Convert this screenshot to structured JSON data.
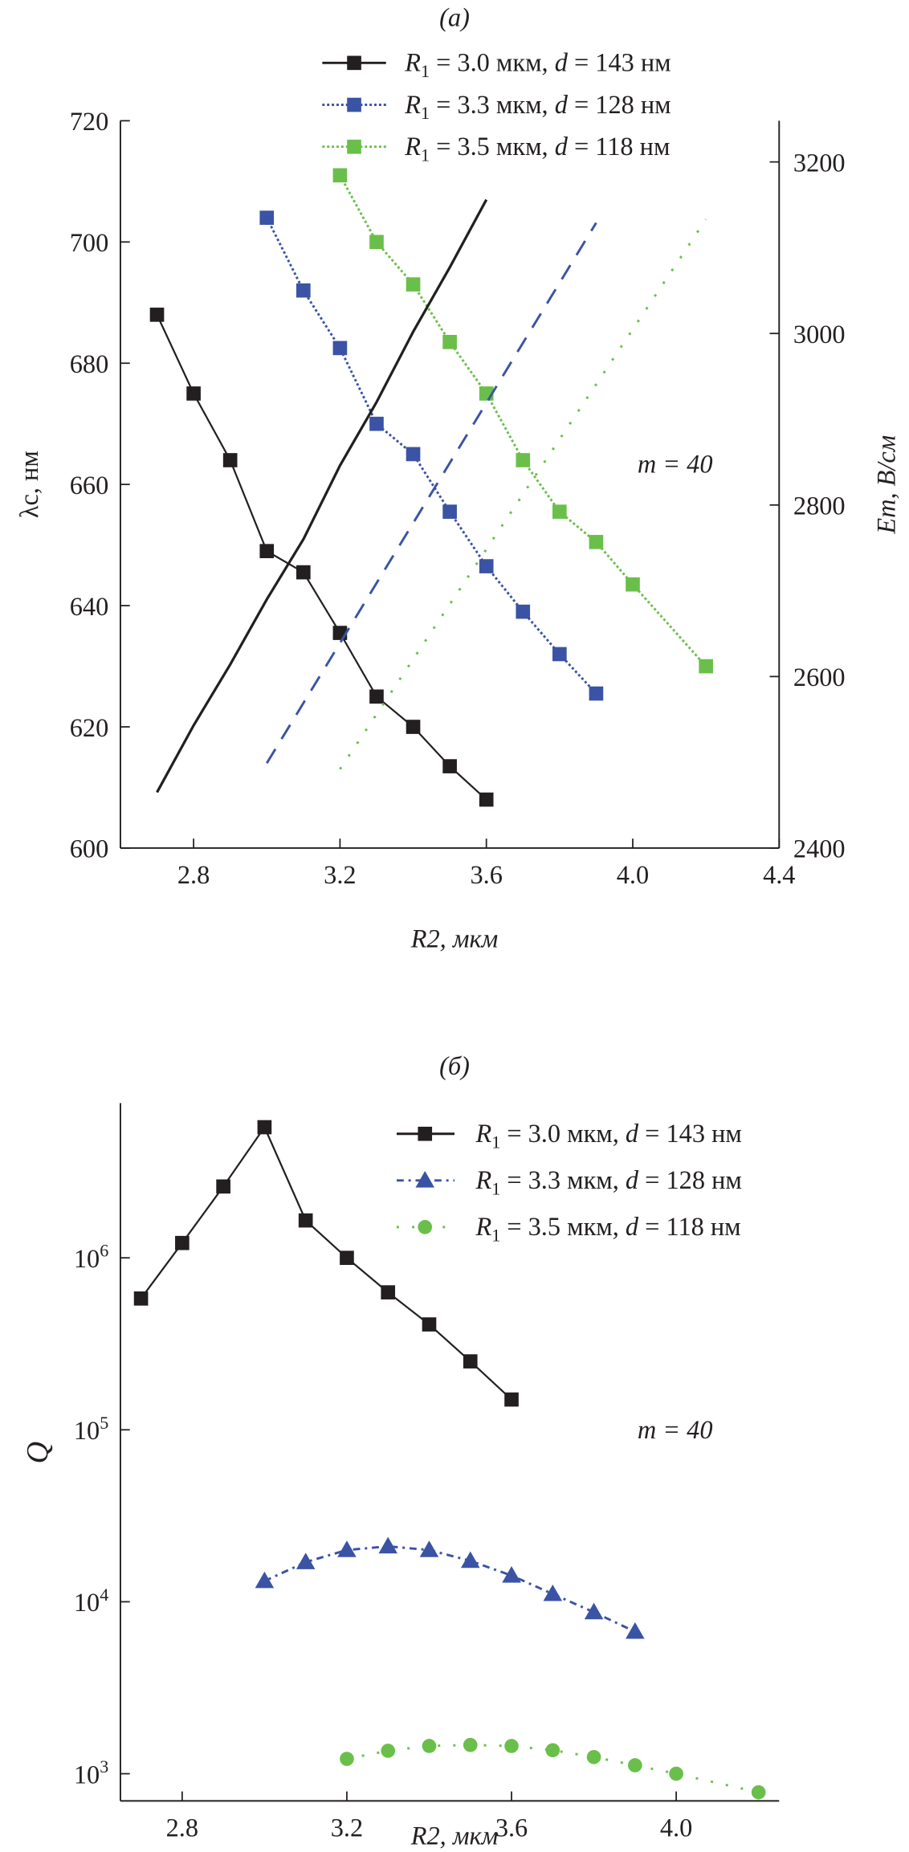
{
  "chart_data": [
    {
      "type": "line",
      "panel_label": "(a)",
      "annotation": "m = 40",
      "xlabel": "R2, мкм",
      "ylabel": "λc, нм",
      "y2label": "Em, В/см",
      "xlim": [
        2.6,
        4.4
      ],
      "ylim": [
        600,
        720
      ],
      "y2lim": [
        2400,
        3248
      ],
      "xticks": [
        "2.8",
        "3.2",
        "3.6",
        "4.0",
        "4.4"
      ],
      "yticks": [
        "600",
        "620",
        "640",
        "660",
        "680",
        "700",
        "720"
      ],
      "y2ticks": [
        "2400",
        "2600",
        "2800",
        "3000",
        "3200"
      ],
      "legend_position": "top-right",
      "colors": {
        "black": "#231f20",
        "blue": "#3a53a4",
        "green": "#6abf4b"
      },
      "series": [
        {
          "name": "R1 = 3.0 мкм, d = 143 нм",
          "axis": "left",
          "marker": "square",
          "color": "#231f20",
          "dash": "solid",
          "x": [
            2.7,
            2.8,
            2.9,
            3.0,
            3.1,
            3.2,
            3.3,
            3.4,
            3.5,
            3.6
          ],
          "y": [
            688,
            675,
            664,
            649,
            645.5,
            635.5,
            625,
            620,
            613.5,
            608
          ]
        },
        {
          "name": "R1 = 3.3 мкм, d = 128 нм",
          "axis": "left",
          "marker": "square",
          "color": "#3a53a4",
          "dash": "dotted",
          "x": [
            3.0,
            3.1,
            3.2,
            3.3,
            3.4,
            3.5,
            3.6,
            3.7,
            3.8,
            3.9
          ],
          "y": [
            704,
            692,
            682.5,
            670,
            665,
            655.5,
            646.5,
            639,
            632,
            625.5
          ]
        },
        {
          "name": "R1 = 3.5 мкм, d = 118 нм",
          "axis": "left",
          "marker": "square",
          "color": "#6abf4b",
          "dash": "dotted",
          "x": [
            3.2,
            3.3,
            3.4,
            3.5,
            3.6,
            3.7,
            3.8,
            3.9,
            4.0,
            4.2
          ],
          "y": [
            711,
            700,
            693,
            683.5,
            675,
            664,
            655.5,
            650.5,
            643.5,
            630
          ]
        },
        {
          "name": "Em, R1 = 3.0 мкм",
          "axis": "right",
          "marker": "none",
          "color": "#231f20",
          "dash": "solid",
          "x": [
            2.7,
            2.8,
            2.9,
            3.0,
            3.1,
            3.2,
            3.3,
            3.4,
            3.5,
            3.6
          ],
          "y": [
            2465,
            2543,
            2614,
            2690,
            2760,
            2846,
            2920,
            3002,
            3077,
            3156
          ]
        },
        {
          "name": "Em, R1 = 3.3 мкм",
          "axis": "right",
          "marker": "none",
          "color": "#3a53a4",
          "dash": "dashed",
          "x": [
            3.0,
            3.9
          ],
          "y": [
            2499,
            3129
          ]
        },
        {
          "name": "Em, R1 = 3.5 мкм",
          "axis": "right",
          "marker": "none",
          "color": "#6abf4b",
          "dash": "sparse-dotted",
          "x": [
            3.2,
            4.2
          ],
          "y": [
            2492,
            3133
          ]
        }
      ]
    },
    {
      "type": "line",
      "panel_label": "(б)",
      "annotation": "m = 40",
      "xlabel": "R2, мкм",
      "ylabel": "Q",
      "yscale": "log",
      "xlim": [
        2.65,
        4.25
      ],
      "ylim": [
        695,
        7940000
      ],
      "xticks": [
        "2.8",
        "3.2",
        "3.6",
        "4.0"
      ],
      "yticks": [
        {
          "base": "10",
          "exp": "3",
          "value": 1000
        },
        {
          "base": "10",
          "exp": "4",
          "value": 10000
        },
        {
          "base": "10",
          "exp": "5",
          "value": 100000
        },
        {
          "base": "10",
          "exp": "6",
          "value": 1000000
        }
      ],
      "legend_position": "top-right",
      "series": [
        {
          "name": "R1 = 3.0 мкм, d = 143 нм",
          "marker": "square",
          "color": "#231f20",
          "dash": "solid",
          "x": [
            2.7,
            2.8,
            2.9,
            3.0,
            3.1,
            3.2,
            3.3,
            3.4,
            3.5,
            3.6
          ],
          "y": [
            580000,
            1220000,
            2600000,
            5750000,
            1650000,
            1000000,
            630000,
            410000,
            250000,
            150000
          ]
        },
        {
          "name": "R1 = 3.3 мкм, d = 128 нм",
          "marker": "triangle",
          "color": "#3a53a4",
          "dash": "dashdot",
          "x": [
            3.0,
            3.1,
            3.2,
            3.3,
            3.4,
            3.5,
            3.6,
            3.7,
            3.8,
            3.9
          ],
          "y": [
            13200,
            17000,
            20000,
            21000,
            20000,
            17300,
            14200,
            11100,
            8700,
            6700
          ]
        },
        {
          "name": "R1 = 3.5 мкм, d = 118 нм",
          "marker": "circle",
          "color": "#6abf4b",
          "dash": "sparse-dotted",
          "x": [
            3.2,
            3.3,
            3.4,
            3.5,
            3.6,
            3.7,
            3.8,
            3.9,
            4.0,
            4.2
          ],
          "y": [
            1220,
            1360,
            1450,
            1470,
            1450,
            1370,
            1250,
            1120,
            1000,
            780
          ]
        }
      ]
    }
  ]
}
